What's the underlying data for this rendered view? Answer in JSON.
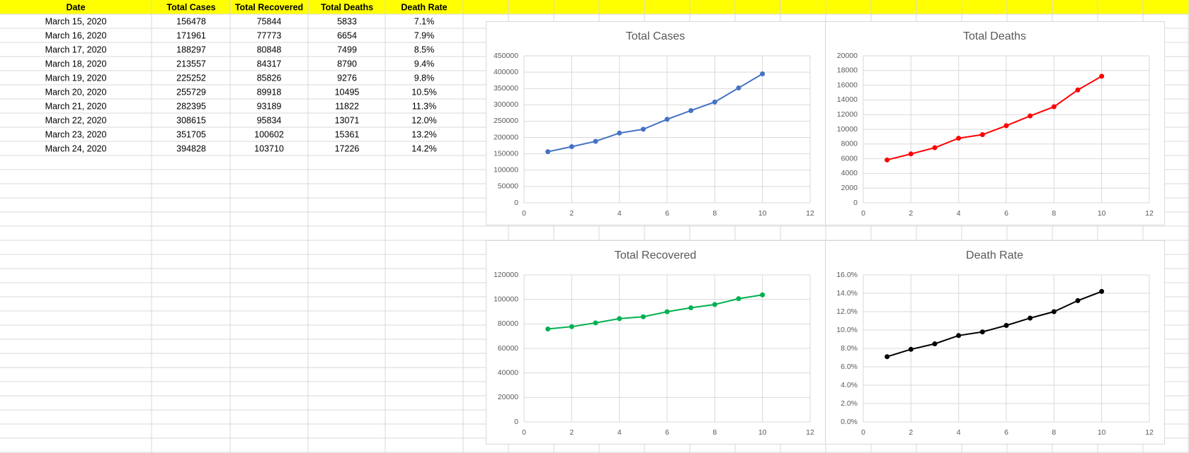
{
  "table": {
    "header": [
      "Date",
      "Total Cases",
      "Total Recovered",
      "Total Deaths",
      "Death Rate"
    ],
    "rows": [
      [
        "March 15, 2020",
        156478,
        75844,
        5833,
        "7.1%"
      ],
      [
        "March 16, 2020",
        171961,
        77773,
        6654,
        "7.9%"
      ],
      [
        "March 17, 2020",
        188297,
        80848,
        7499,
        "8.5%"
      ],
      [
        "March 18, 2020",
        213557,
        84317,
        8790,
        "9.4%"
      ],
      [
        "March 19, 2020",
        225252,
        85826,
        9276,
        "9.8%"
      ],
      [
        "March 20, 2020",
        255729,
        89918,
        10495,
        "10.5%"
      ],
      [
        "March 21, 2020",
        282395,
        93189,
        11822,
        "11.3%"
      ],
      [
        "March 22, 2020",
        308615,
        95834,
        13071,
        "12.0%"
      ],
      [
        "March 23, 2020",
        351705,
        100602,
        15361,
        "13.2%"
      ],
      [
        "March 24, 2020",
        394828,
        103710,
        17226,
        "14.2%"
      ]
    ]
  },
  "chart_data": [
    {
      "type": "line",
      "title": "Total Cases",
      "x": [
        1,
        2,
        3,
        4,
        5,
        6,
        7,
        8,
        9,
        10
      ],
      "series": [
        {
          "color": "#4472c4",
          "values": [
            156478,
            171961,
            188297,
            213557,
            225252,
            255729,
            282395,
            308615,
            351705,
            394828
          ]
        }
      ],
      "xlim": [
        0,
        12
      ],
      "xticks": [
        0,
        2,
        4,
        6,
        8,
        10,
        12
      ],
      "ylim": [
        0,
        450000
      ],
      "yticks": [
        0,
        50000,
        100000,
        150000,
        200000,
        250000,
        300000,
        350000,
        400000,
        450000
      ],
      "grid": true
    },
    {
      "type": "line",
      "title": "Total Deaths",
      "x": [
        1,
        2,
        3,
        4,
        5,
        6,
        7,
        8,
        9,
        10
      ],
      "series": [
        {
          "color": "#ff0000",
          "values": [
            5833,
            6654,
            7499,
            8790,
            9276,
            10495,
            11822,
            13071,
            15361,
            17226
          ]
        }
      ],
      "xlim": [
        0,
        12
      ],
      "xticks": [
        0,
        2,
        4,
        6,
        8,
        10,
        12
      ],
      "ylim": [
        0,
        20000
      ],
      "yticks": [
        0,
        2000,
        4000,
        6000,
        8000,
        10000,
        12000,
        14000,
        16000,
        18000,
        20000
      ],
      "grid": true
    },
    {
      "type": "line",
      "title": "Total Recovered",
      "x": [
        1,
        2,
        3,
        4,
        5,
        6,
        7,
        8,
        9,
        10
      ],
      "series": [
        {
          "color": "#00b050",
          "values": [
            75844,
            77773,
            80848,
            84317,
            85826,
            89918,
            93189,
            95834,
            100602,
            103710
          ]
        }
      ],
      "xlim": [
        0,
        12
      ],
      "xticks": [
        0,
        2,
        4,
        6,
        8,
        10,
        12
      ],
      "ylim": [
        0,
        120000
      ],
      "yticks": [
        0,
        20000,
        40000,
        60000,
        80000,
        100000,
        120000
      ],
      "grid": true
    },
    {
      "type": "line",
      "title": "Death Rate",
      "x": [
        1,
        2,
        3,
        4,
        5,
        6,
        7,
        8,
        9,
        10
      ],
      "series": [
        {
          "color": "#000000",
          "values": [
            7.1,
            7.9,
            8.5,
            9.4,
            9.8,
            10.5,
            11.3,
            12.0,
            13.2,
            14.2
          ]
        }
      ],
      "xlim": [
        0,
        12
      ],
      "xticks": [
        0,
        2,
        4,
        6,
        8,
        10,
        12
      ],
      "ylim": [
        0,
        16
      ],
      "yticks": [
        {
          "value": 0,
          "label": "0.0%"
        },
        {
          "value": 2,
          "label": "2.0%"
        },
        {
          "value": 4,
          "label": "4.0%"
        },
        {
          "value": 6,
          "label": "6.0%"
        },
        {
          "value": 8,
          "label": "8.0%"
        },
        {
          "value": 10,
          "label": "10.0%"
        },
        {
          "value": 12,
          "label": "12.0%"
        },
        {
          "value": 14,
          "label": "14.0%"
        },
        {
          "value": 16,
          "label": "16.0%"
        }
      ],
      "grid": true
    }
  ]
}
